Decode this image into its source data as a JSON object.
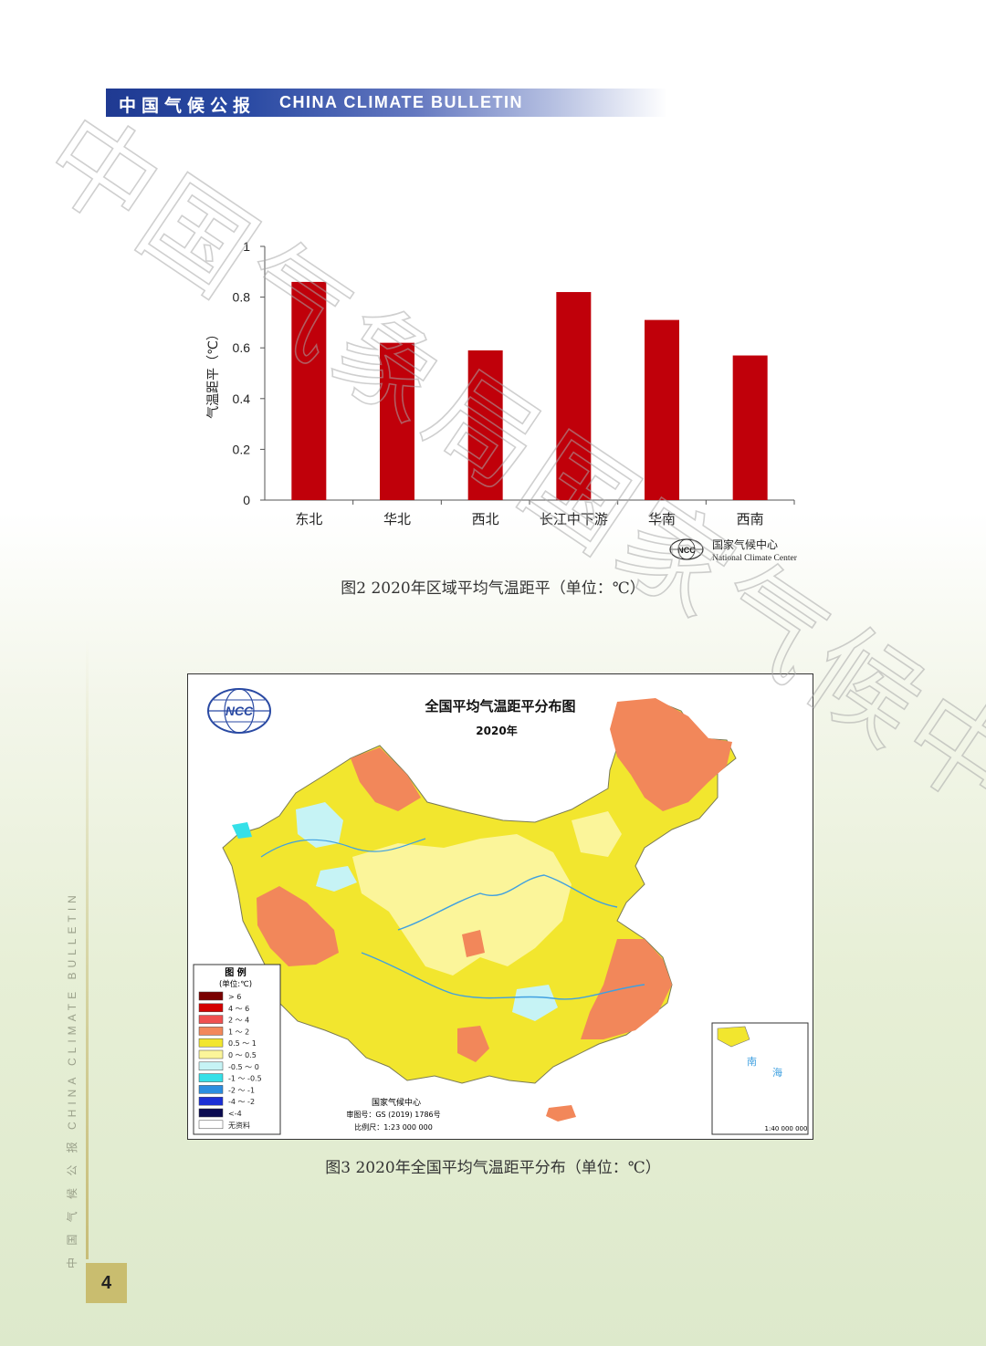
{
  "header": {
    "zh": "中国气候公报",
    "en": "CHINA CLIMATE BULLETIN"
  },
  "watermark": "中国气象局国家气候中心",
  "figure2": {
    "caption": "图2 2020年区域平均气温距平（单位：℃）",
    "logo": {
      "zh": "国家气候中心",
      "en": "National Climate Center",
      "mark": "NCC"
    }
  },
  "chart_data": {
    "type": "bar",
    "categories": [
      "东北",
      "华北",
      "西北",
      "长江中下游",
      "华南",
      "西南"
    ],
    "values": [
      0.86,
      0.62,
      0.59,
      0.82,
      0.71,
      0.57
    ],
    "ylabel": "气温距平（℃）",
    "ylim": [
      0,
      1
    ],
    "yticks": [
      "0",
      "0.2",
      "0.4",
      "0.6",
      "0.8",
      "1"
    ],
    "color": "#c0000a",
    "grid": false
  },
  "figure3": {
    "caption": "图3 2020年全国平均气温距平分布（单位：℃）",
    "map_title": "全国平均气温距平分布图",
    "map_year": "2020年",
    "legend_title": "图 例",
    "legend_unit": "(单位:℃)",
    "legend": [
      {
        "label": "> 6",
        "color": "#7a0000"
      },
      {
        "label": "4 ～ 6",
        "color": "#d40000"
      },
      {
        "label": "2 ～ 4",
        "color": "#f05050"
      },
      {
        "label": "1 ～ 2",
        "color": "#f2875a"
      },
      {
        "label": "0.5 ～ 1",
        "color": "#f2e62e"
      },
      {
        "label": "0 ～ 0.5",
        "color": "#fbf59a"
      },
      {
        "label": "-0.5 ～ 0",
        "color": "#c6f3f5"
      },
      {
        "label": "-1 ～ -0.5",
        "color": "#35e0e8"
      },
      {
        "label": "-2 ～ -1",
        "color": "#2a8ee0"
      },
      {
        "label": "-4 ～ -2",
        "color": "#1b2fd6"
      },
      {
        "label": "<-4",
        "color": "#0a0a50"
      },
      {
        "label": "无资料",
        "color": "#ffffff"
      }
    ],
    "credits": [
      "国家气候中心",
      "审图号：GS (2019) 1786号",
      "比例尺：1:23 000 000"
    ],
    "inset_labels": [
      "南",
      "海"
    ],
    "inset_scale": "1:40 000 000"
  },
  "side_text": "中 国 气 候 公 报   CHINA CLIMATE BULLETIN",
  "page_number": "4"
}
